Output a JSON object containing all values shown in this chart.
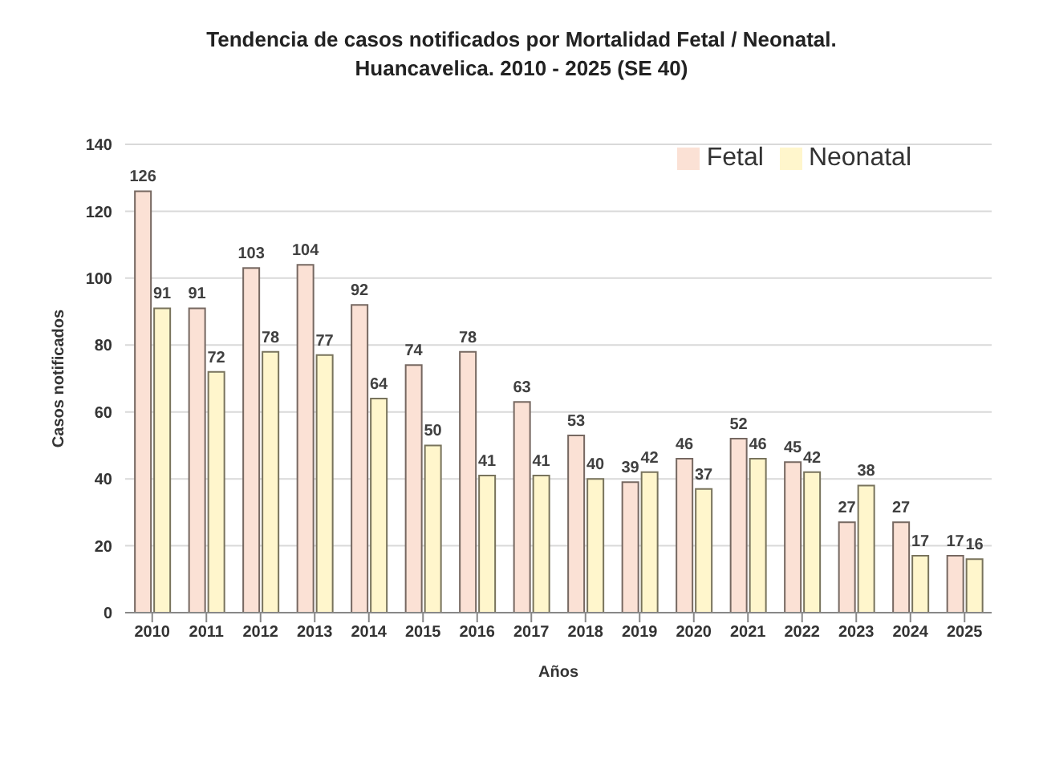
{
  "chart_data": {
    "type": "bar",
    "title": "Tendencia de casos notificados por Mortalidad Fetal / Neonatal.",
    "subtitle": "Huancavelica. 2010 - 2025 (SE 40)",
    "xlabel": "Años",
    "ylabel": "Casos notificados",
    "categories": [
      "2010",
      "2011",
      "2012",
      "2013",
      "2014",
      "2015",
      "2016",
      "2017",
      "2018",
      "2019",
      "2020",
      "2021",
      "2022",
      "2023",
      "2024",
      "2025"
    ],
    "series": [
      {
        "name": "Fetal",
        "color": "#fbe1d5",
        "values": [
          126,
          91,
          103,
          104,
          92,
          74,
          78,
          63,
          53,
          39,
          46,
          52,
          45,
          27,
          27,
          17
        ]
      },
      {
        "name": "Neonatal",
        "color": "#fff6cc",
        "values": [
          91,
          72,
          78,
          77,
          64,
          50,
          41,
          41,
          40,
          42,
          37,
          46,
          42,
          38,
          17,
          16
        ]
      }
    ],
    "ylim": [
      0,
      140
    ],
    "yticks": [
      0,
      20,
      40,
      60,
      80,
      100,
      120,
      140
    ],
    "grid": "y",
    "legend": "top right",
    "data_labels": true
  }
}
